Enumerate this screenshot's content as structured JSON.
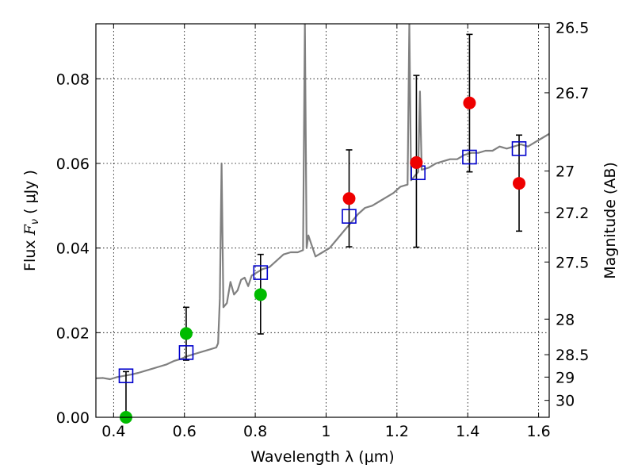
{
  "chart_data": {
    "type": "scatter",
    "xlabel": "Wavelength  λ (μm)",
    "ylabel": "Flux  F_ν  ( μJy )",
    "ylabel_parts": {
      "pre": "Flux  ",
      "sym": "F",
      "sub": "ν",
      "post": "  ( μJy )"
    },
    "y2label": "Magnitude (AB)",
    "xlim": [
      0.35,
      1.63
    ],
    "ylim": [
      0.0,
      0.093
    ],
    "grid": true,
    "x_ticks": [
      0.4,
      0.6,
      0.8,
      1.0,
      1.2,
      1.4,
      1.6
    ],
    "x_tick_labels": [
      "0.4",
      "0.6",
      "0.8",
      "1",
      "1.2",
      "1.4",
      "1.6"
    ],
    "y_ticks": [
      0.0,
      0.02,
      0.04,
      0.06,
      0.08
    ],
    "y_tick_labels": [
      "0.00",
      "0.02",
      "0.04",
      "0.06",
      "0.08"
    ],
    "y2_ticks": [
      {
        "label": "26.5",
        "flux": 0.0922
      },
      {
        "label": "26.7",
        "flux": 0.0767
      },
      {
        "label": "27",
        "flux": 0.0582
      },
      {
        "label": "27.2",
        "flux": 0.0484
      },
      {
        "label": "27.5",
        "flux": 0.0367
      },
      {
        "label": "28",
        "flux": 0.0232
      },
      {
        "label": "28.5",
        "flux": 0.0148
      },
      {
        "label": "29",
        "flux": 0.0095
      },
      {
        "label": "30",
        "flux": 0.004
      }
    ],
    "colors": {
      "model_line": "#808080",
      "model_boxes": "#0000cc",
      "green_points": "#00bb00",
      "red_points": "#ee0000",
      "errorbars": "#000000",
      "grid": "#000000"
    },
    "series": [
      {
        "kind": "line",
        "points": [
          [
            0.35,
            0.0092
          ],
          [
            0.37,
            0.0093
          ],
          [
            0.39,
            0.009
          ],
          [
            0.41,
            0.0095
          ],
          [
            0.43,
            0.0098
          ],
          [
            0.45,
            0.0101
          ],
          [
            0.47,
            0.0105
          ],
          [
            0.49,
            0.011
          ],
          [
            0.51,
            0.0115
          ],
          [
            0.53,
            0.012
          ],
          [
            0.55,
            0.0125
          ],
          [
            0.57,
            0.0133
          ],
          [
            0.59,
            0.0138
          ],
          [
            0.61,
            0.0145
          ],
          [
            0.63,
            0.015
          ],
          [
            0.65,
            0.0155
          ],
          [
            0.67,
            0.016
          ],
          [
            0.69,
            0.0165
          ],
          [
            0.695,
            0.0175
          ],
          [
            0.7,
            0.028
          ],
          [
            0.705,
            0.06
          ],
          [
            0.71,
            0.026
          ],
          [
            0.72,
            0.027
          ],
          [
            0.73,
            0.032
          ],
          [
            0.74,
            0.029
          ],
          [
            0.75,
            0.03
          ],
          [
            0.76,
            0.0325
          ],
          [
            0.77,
            0.033
          ],
          [
            0.78,
            0.031
          ],
          [
            0.79,
            0.0335
          ],
          [
            0.8,
            0.034
          ],
          [
            0.82,
            0.035
          ],
          [
            0.84,
            0.0355
          ],
          [
            0.86,
            0.037
          ],
          [
            0.88,
            0.0385
          ],
          [
            0.9,
            0.039
          ],
          [
            0.92,
            0.039
          ],
          [
            0.935,
            0.0395
          ],
          [
            0.94,
            0.093
          ],
          [
            0.945,
            0.04
          ],
          [
            0.95,
            0.043
          ],
          [
            0.97,
            0.038
          ],
          [
            0.99,
            0.039
          ],
          [
            1.01,
            0.04
          ],
          [
            1.03,
            0.042
          ],
          [
            1.05,
            0.044
          ],
          [
            1.07,
            0.046
          ],
          [
            1.09,
            0.048
          ],
          [
            1.11,
            0.0495
          ],
          [
            1.13,
            0.05
          ],
          [
            1.15,
            0.051
          ],
          [
            1.17,
            0.052
          ],
          [
            1.19,
            0.053
          ],
          [
            1.21,
            0.0545
          ],
          [
            1.23,
            0.055
          ],
          [
            1.235,
            0.093
          ],
          [
            1.24,
            0.056
          ],
          [
            1.25,
            0.057
          ],
          [
            1.26,
            0.058
          ],
          [
            1.265,
            0.077
          ],
          [
            1.27,
            0.0585
          ],
          [
            1.29,
            0.059
          ],
          [
            1.31,
            0.06
          ],
          [
            1.33,
            0.0605
          ],
          [
            1.35,
            0.061
          ],
          [
            1.37,
            0.061
          ],
          [
            1.39,
            0.062
          ],
          [
            1.41,
            0.0625
          ],
          [
            1.43,
            0.0625
          ],
          [
            1.45,
            0.063
          ],
          [
            1.47,
            0.063
          ],
          [
            1.49,
            0.064
          ],
          [
            1.51,
            0.0635
          ],
          [
            1.53,
            0.064
          ],
          [
            1.55,
            0.0645
          ],
          [
            1.57,
            0.064
          ],
          [
            1.59,
            0.065
          ],
          [
            1.61,
            0.066
          ],
          [
            1.63,
            0.067
          ]
        ]
      },
      {
        "kind": "boxes",
        "x": [
          0.435,
          0.605,
          0.815,
          1.065,
          1.26,
          1.405,
          1.545
        ],
        "y": [
          0.0098,
          0.0153,
          0.0342,
          0.0475,
          0.0578,
          0.0615,
          0.0635
        ]
      },
      {
        "kind": "circles",
        "color_key": "green_points",
        "x": [
          0.435,
          0.605,
          0.815
        ],
        "y": [
          0.0,
          0.0198,
          0.029
        ],
        "err_low": [
          0.0,
          0.0135,
          0.0197
        ],
        "err_high": [
          0.0108,
          0.026,
          0.0385
        ]
      },
      {
        "kind": "circles",
        "color_key": "red_points",
        "x": [
          1.065,
          1.255,
          1.405,
          1.545
        ],
        "y": [
          0.0517,
          0.0602,
          0.0743,
          0.0553
        ],
        "err_low": [
          0.0403,
          0.0402,
          0.058,
          0.044
        ],
        "err_high": [
          0.0632,
          0.0808,
          0.0905,
          0.0667
        ]
      }
    ]
  }
}
